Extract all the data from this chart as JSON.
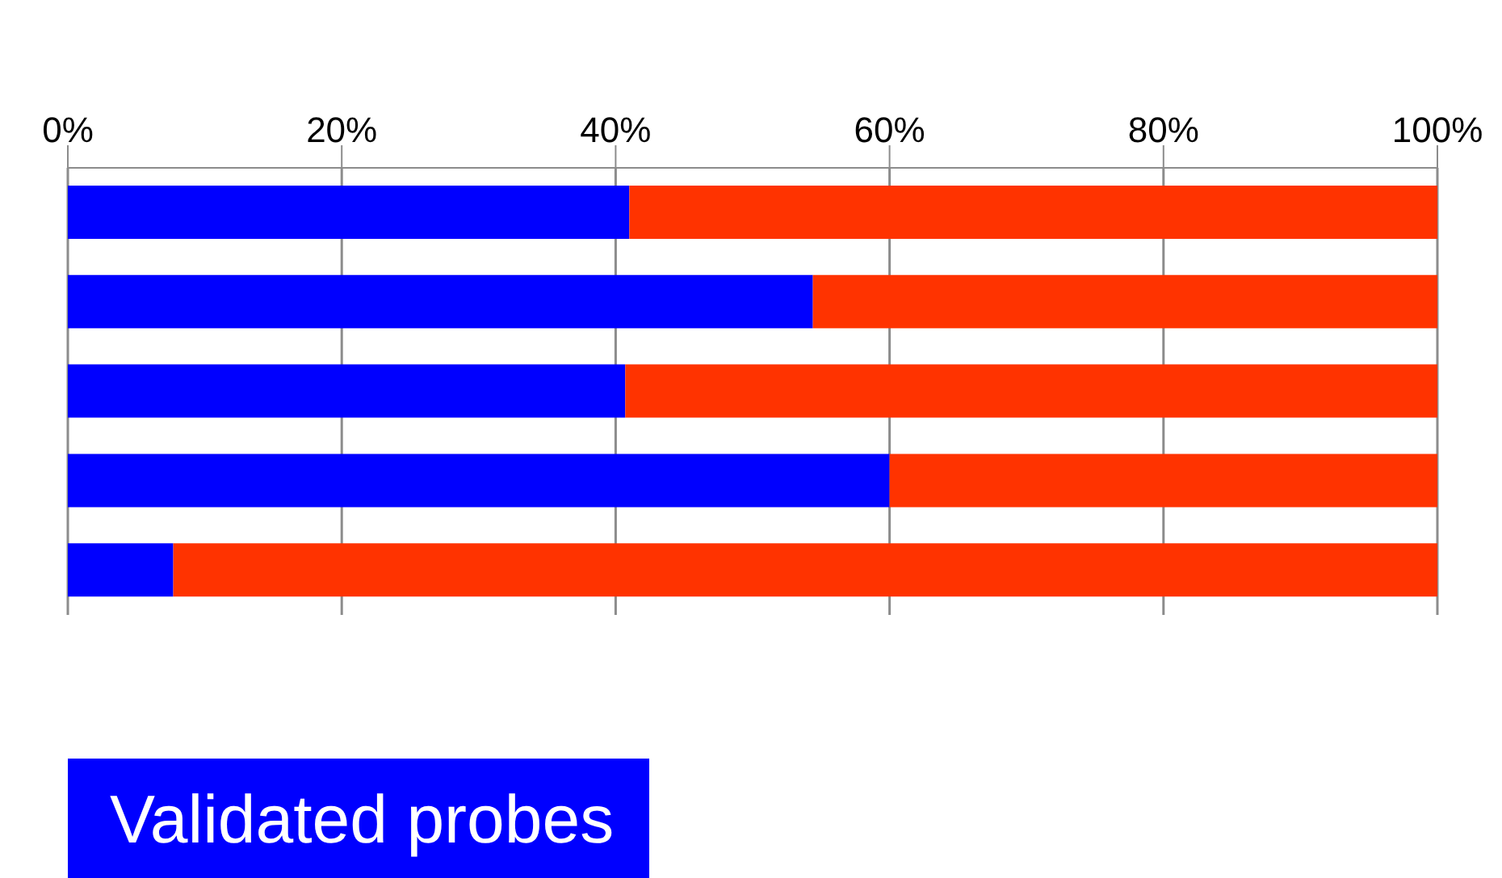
{
  "chart_data": {
    "type": "bar",
    "orientation": "horizontal",
    "stacked": true,
    "categories": [
      null,
      null,
      null,
      null,
      null
    ],
    "series": [
      {
        "name": "Validated probes",
        "color": "#0000ff",
        "values": [
          41,
          54.4,
          40.7,
          60,
          7.7
        ]
      },
      {
        "color": "#ff3300",
        "values": [
          59,
          45.6,
          59.3,
          40,
          92.3
        ]
      }
    ],
    "xlim": [
      0,
      100
    ],
    "xticks": [
      {
        "value": 0,
        "label": "0%"
      },
      {
        "value": 20,
        "label": "20%"
      },
      {
        "value": 40,
        "label": "40%"
      },
      {
        "value": 60,
        "label": "60%"
      },
      {
        "value": 80,
        "label": "80%"
      },
      {
        "value": 100,
        "label": "100%"
      }
    ],
    "grid": "x",
    "legend": "bottom left"
  }
}
